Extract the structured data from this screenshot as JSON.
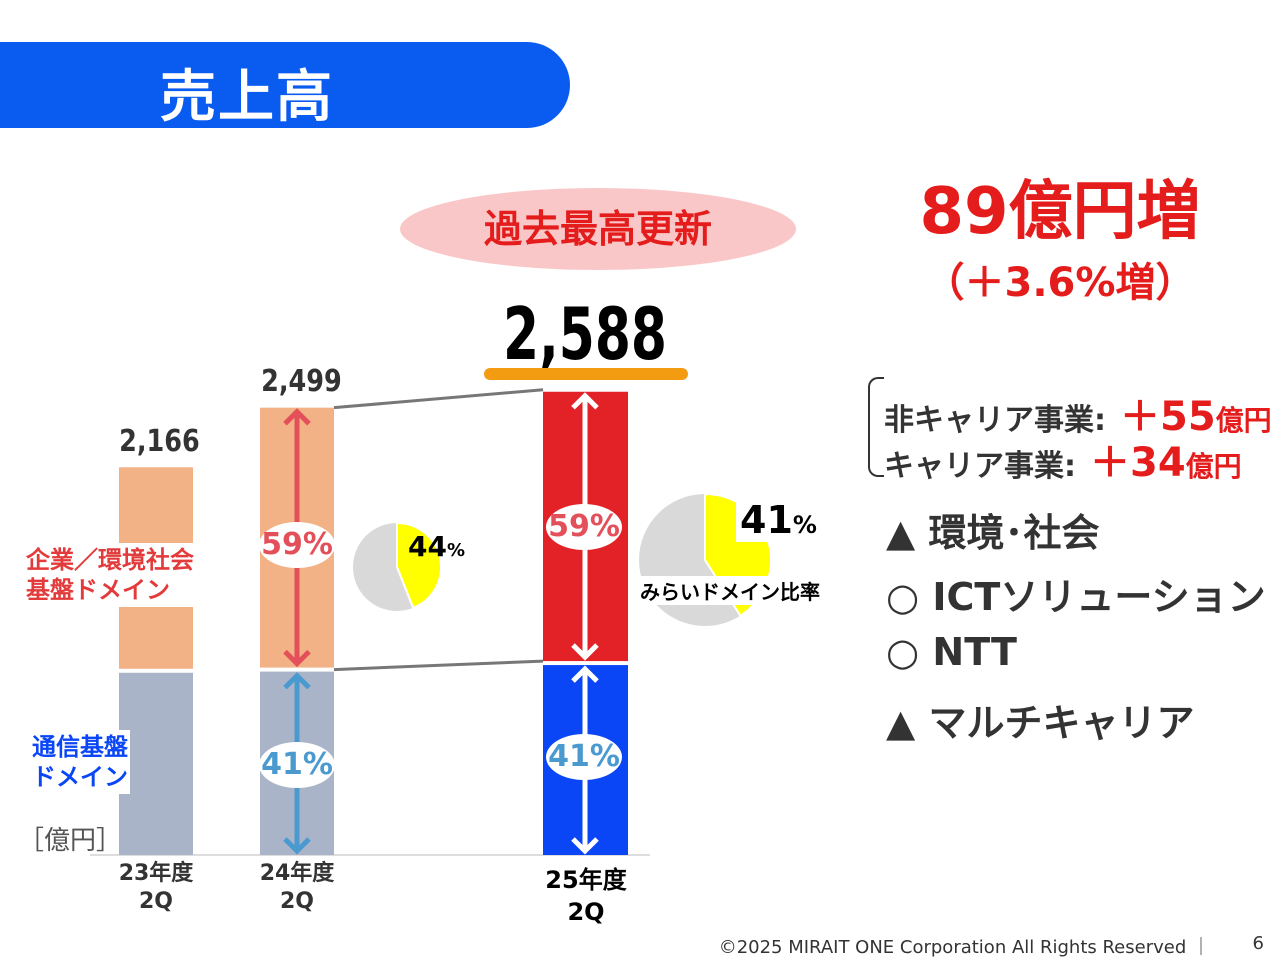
{
  "title": "売上高",
  "record_badge": "過去最高更新",
  "increase": {
    "amount": "89億円増",
    "percent": "（＋3.6%増）"
  },
  "breakdown": [
    {
      "label": "非キャリア事業:",
      "value": "＋55",
      "unit": "億円"
    },
    {
      "label": "キャリア事業:",
      "value": "＋34",
      "unit": "億円"
    }
  ],
  "segments": [
    {
      "mark": "▲",
      "label": "環境･社会"
    },
    {
      "mark": "○",
      "label": "ICTソリューション"
    },
    {
      "mark": "○",
      "label": "NTT"
    },
    {
      "mark": "▲",
      "label": "マルチキャリア"
    }
  ],
  "legend": {
    "upper": "企業／環境社会\n基盤ドメイン",
    "upper_l1": "企業／環境社会",
    "upper_l2": "基盤ドメイン",
    "lower_l1": "通信基盤",
    "lower_l2": "ドメイン"
  },
  "mirai_label": "みらいドメイン比率",
  "footer": "©2025 MIRAIT ONE Corporation All Rights Reserved ｜",
  "page_number": "6",
  "chart_data": {
    "type": "bar",
    "stacked": true,
    "unit": "［億円］",
    "categories": [
      "23年度\n2Q",
      "24年度\n2Q",
      "25年度\n2Q"
    ],
    "category_lines": [
      [
        "23年度",
        "2Q"
      ],
      [
        "24年度",
        "2Q"
      ],
      [
        "25年度",
        "2Q"
      ]
    ],
    "totals": [
      2166,
      2499,
      2588
    ],
    "total_labels": [
      "2,166",
      "2,499",
      "2,588"
    ],
    "series": [
      {
        "name": "通信基盤ドメイン",
        "share": [
          0.47,
          0.41,
          0.41
        ],
        "share_labels": [
          "",
          "41%",
          "41%"
        ]
      },
      {
        "name": "企業／環境社会基盤ドメイン",
        "share": [
          0.53,
          0.59,
          0.59
        ],
        "share_labels": [
          "",
          "59%",
          "59%"
        ]
      }
    ],
    "mirai_ratio": [
      {
        "category": "24年度2Q",
        "value": 44,
        "label": "44",
        "suffix": "%"
      },
      {
        "category": "25年度2Q",
        "value": 41,
        "label": "41",
        "suffix": "%"
      }
    ],
    "colors": {
      "upper": [
        "#f2b286",
        "#f2b286",
        "#e32228"
      ],
      "lower": [
        "#aab4c8",
        "#aab4c8",
        "#0a46f5"
      ],
      "pie_yellow": "#ffff00",
      "pie_gray": "#d9d9d9"
    }
  }
}
